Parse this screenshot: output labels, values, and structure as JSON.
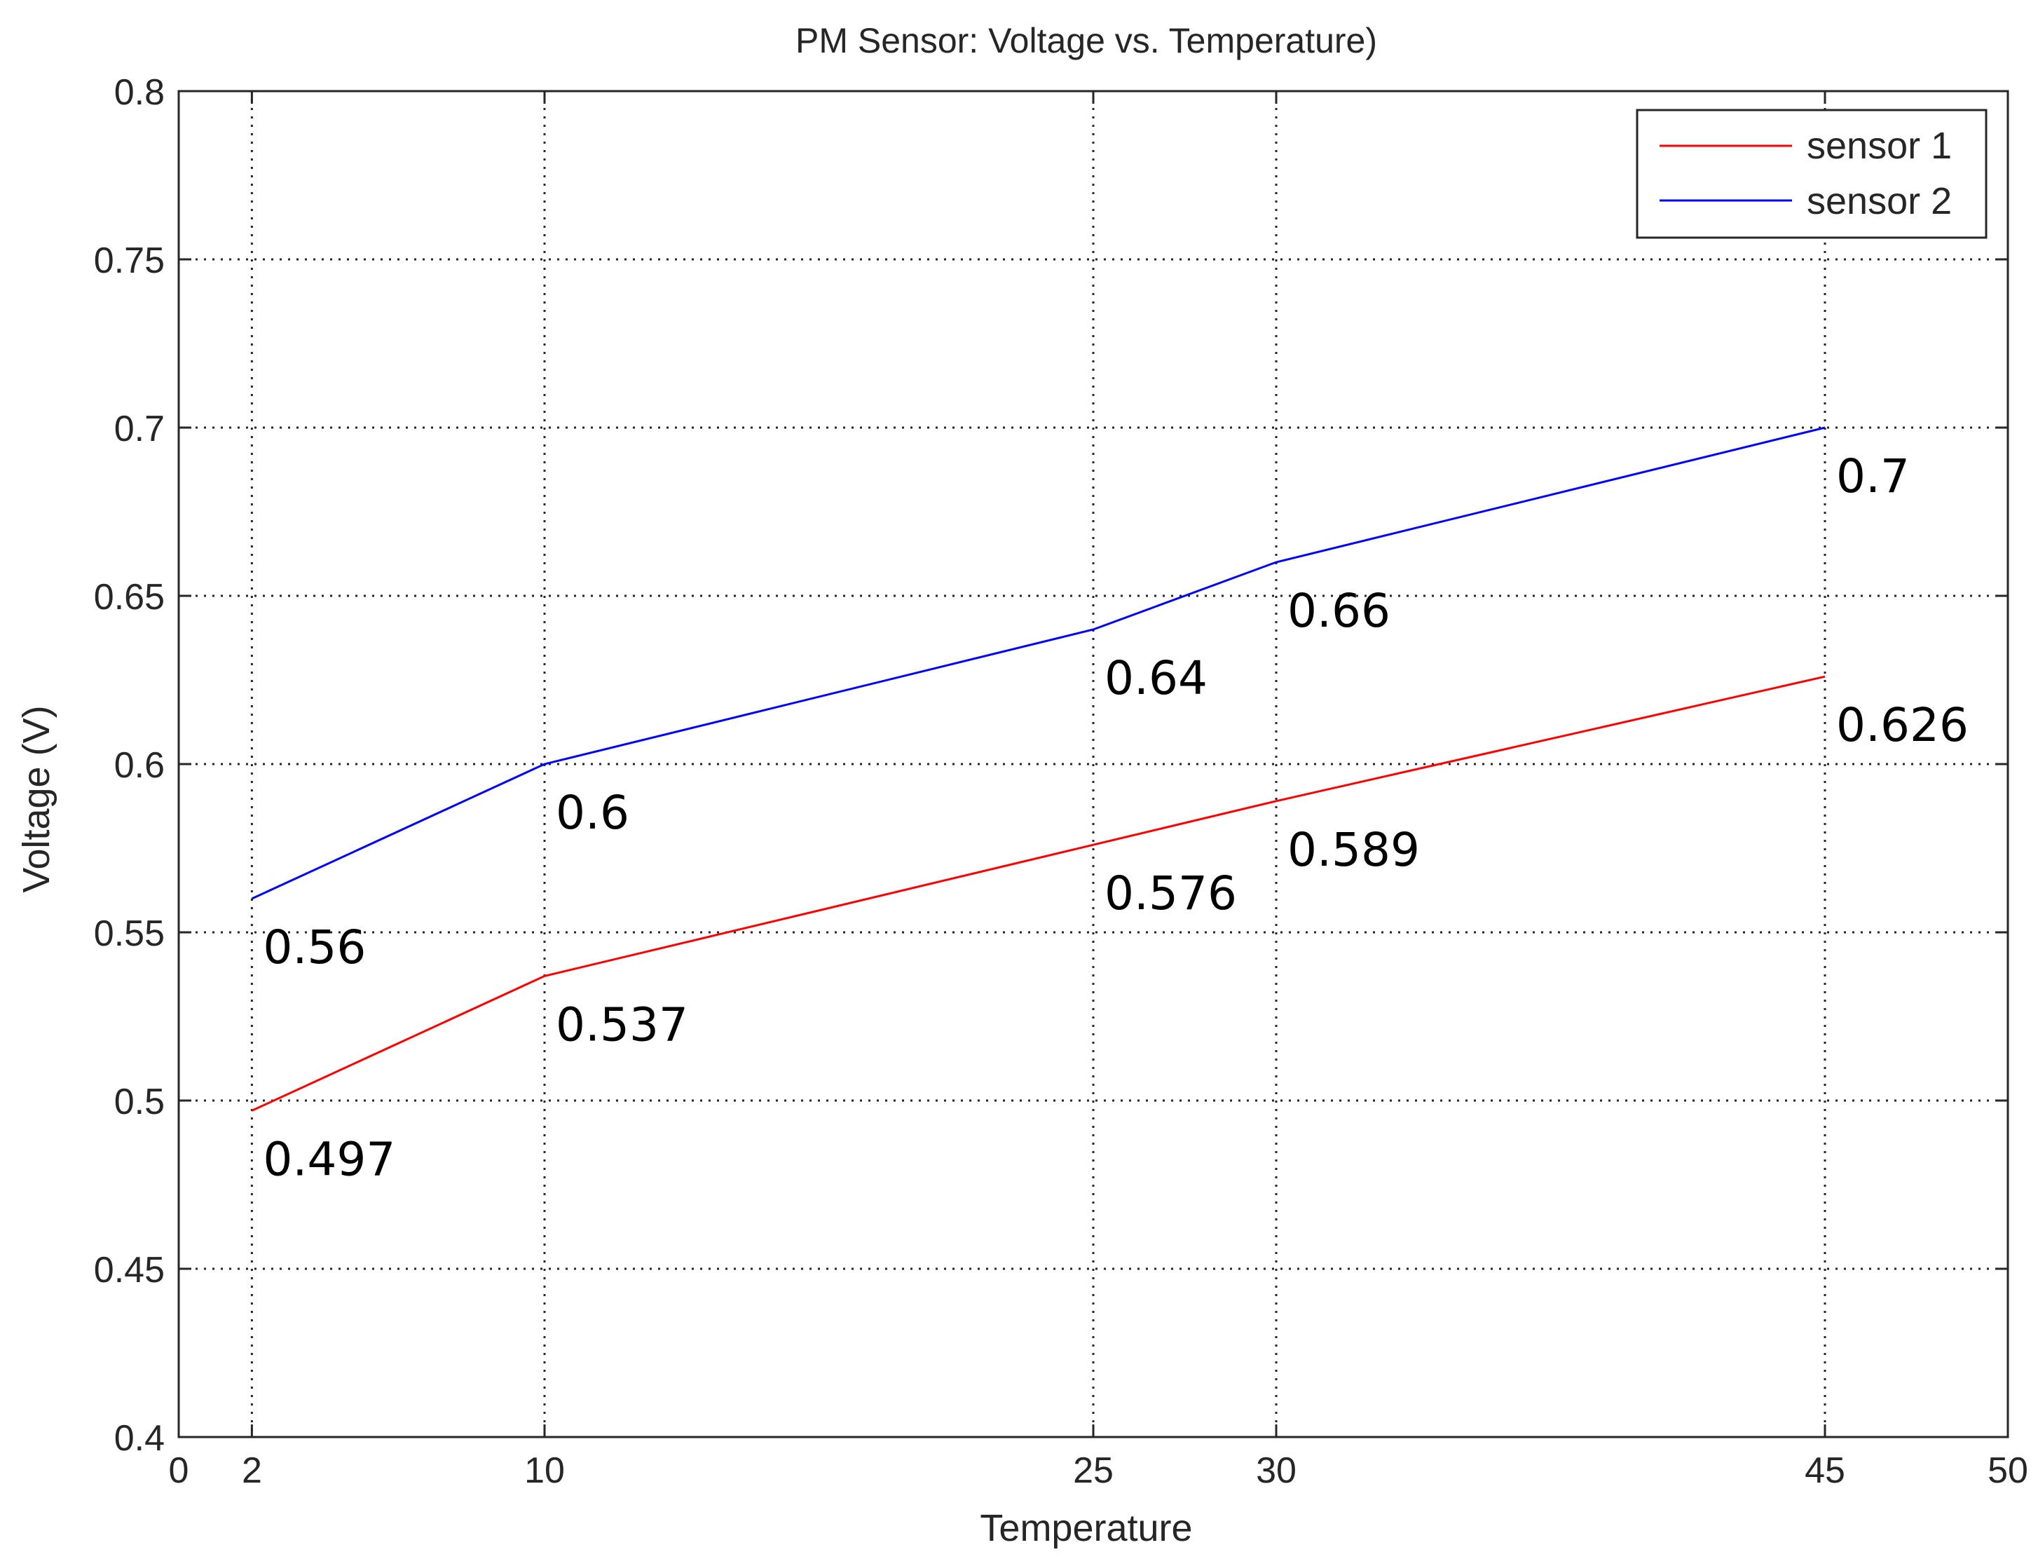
{
  "chart_data": {
    "type": "line",
    "title": "PM Sensor: Voltage vs. Temperature)",
    "xlabel": "Temperature",
    "ylabel": "Voltage (V)",
    "xlim": [
      0,
      50
    ],
    "ylim": [
      0.4,
      0.8
    ],
    "x_ticks": [
      0,
      2,
      10,
      25,
      30,
      45,
      50
    ],
    "y_ticks": [
      0.4,
      0.45,
      0.5,
      0.55,
      0.6,
      0.65,
      0.7,
      0.75,
      0.8
    ],
    "x_tick_labels": [
      "0",
      "2",
      "10",
      "25",
      "30",
      "45",
      "50"
    ],
    "y_tick_labels": [
      "0.4",
      "0.45",
      "0.5",
      "0.55",
      "0.6",
      "0.65",
      "0.7",
      "0.75",
      "0.8"
    ],
    "grid": true,
    "legend_position": "top-right",
    "x": [
      2,
      10,
      25,
      30,
      45
    ],
    "series": [
      {
        "name": "sensor 1",
        "color": "#ff0000",
        "values": [
          0.497,
          0.537,
          0.576,
          0.589,
          0.626
        ],
        "labels": [
          "0.497",
          "0.537",
          "0.576",
          "0.589",
          "0.626"
        ]
      },
      {
        "name": "sensor 2",
        "color": "#0000ff",
        "values": [
          0.56,
          0.6,
          0.64,
          0.66,
          0.7
        ],
        "labels": [
          "0.56",
          "0.6",
          "0.64",
          "0.66",
          "0.7"
        ]
      }
    ]
  }
}
